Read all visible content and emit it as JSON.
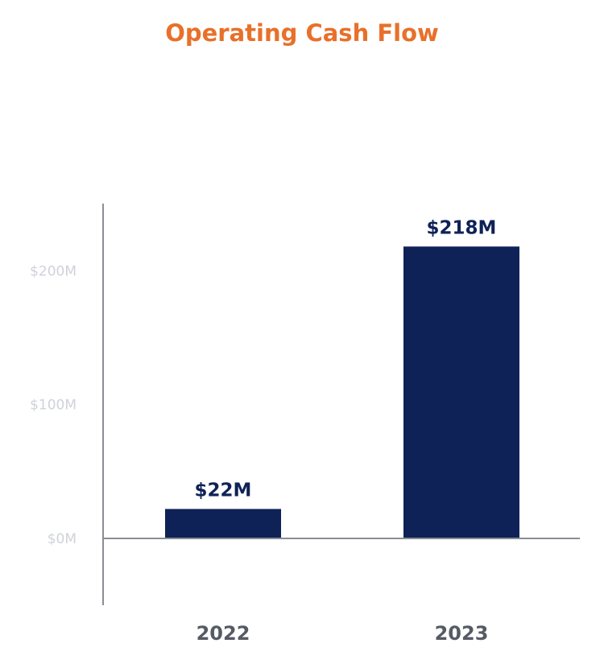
{
  "chart_data": {
    "type": "bar",
    "title": "Operating Cash Flow",
    "categories": [
      "2022",
      "2023"
    ],
    "series": [
      {
        "values": [
          22,
          218
        ],
        "data_labels": [
          "$22M",
          "$218M"
        ]
      }
    ],
    "y_ticks": [
      {
        "value": 0,
        "label": "$0M"
      },
      {
        "value": 100,
        "label": "$100M"
      },
      {
        "value": 200,
        "label": "$200M"
      }
    ],
    "ylim": [
      -50,
      250
    ],
    "xlabel": "",
    "ylabel": "",
    "grid": false,
    "legend": "none",
    "colors": {
      "title": "#e8702a",
      "bar": "#0f2257",
      "data_label": "#0f2257",
      "tick_label": "#cfd2d8",
      "category_label": "#555b65",
      "axis": "#8a8d93"
    }
  }
}
